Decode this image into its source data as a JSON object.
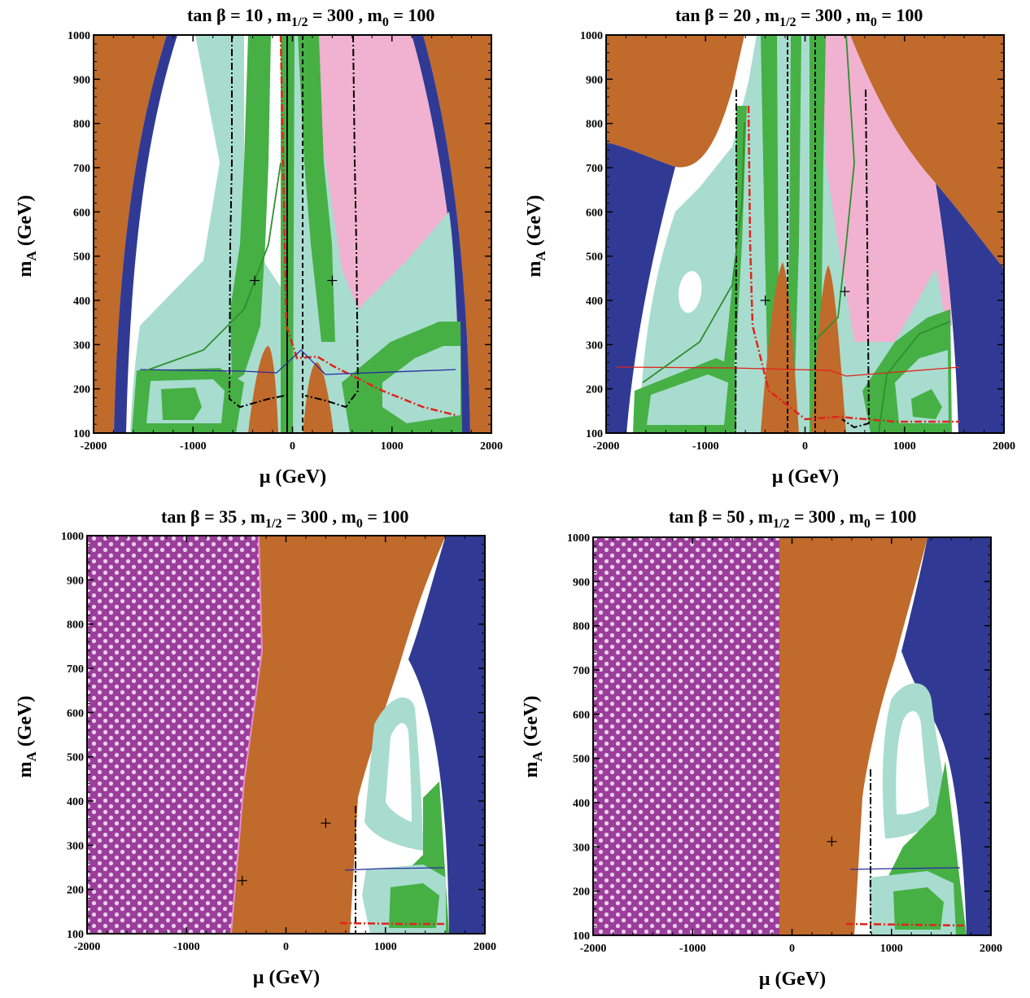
{
  "colors": {
    "brown": "#c06a2b",
    "navy": "#303a94",
    "aqua": "#a8dccf",
    "green": "#46b045",
    "pink": "#f0b2d0",
    "purple": "#9b3d9b",
    "dot": "#e9d0ea",
    "white": "#ffffff",
    "black": "#000000",
    "red": "#e0241c",
    "blue": "#2a2aa0",
    "darkgreen": "#2f8f2f"
  },
  "chart_data": [
    {
      "id": "p1",
      "type": "contour",
      "title_prefix": "tan β = 10 ,  ",
      "title_m12": "m",
      "title_m12_sub": "1/2",
      "title_m12_val": " = 300 ,  ",
      "title_m0": "m",
      "title_m0_sub": "0",
      "title_m0_val": " = 100",
      "xlabel": "μ (GeV)",
      "ylabel_main": "m",
      "ylabel_sub": "A",
      "ylabel_unit": " (GeV)",
      "xlim": [
        -2000,
        2000
      ],
      "ylim": [
        100,
        1000
      ],
      "xticks": [
        "-2000",
        "-1000",
        "0",
        "1000",
        "2000"
      ],
      "yticks": [
        "100",
        "200",
        "300",
        "400",
        "500",
        "600",
        "700",
        "800",
        "900",
        "1000"
      ],
      "markers": [
        [
          -380,
          445
        ],
        [
          400,
          445
        ]
      ]
    },
    {
      "id": "p2",
      "type": "contour",
      "title_prefix": "tan β = 20 ,  ",
      "title_m12": "m",
      "title_m12_sub": "1/2",
      "title_m12_val": " = 300 ,  ",
      "title_m0": "m",
      "title_m0_sub": "0",
      "title_m0_val": " = 100",
      "xlabel": "μ (GeV)",
      "ylabel_main": "m",
      "ylabel_sub": "A",
      "ylabel_unit": " (GeV)",
      "xlim": [
        -2000,
        2000
      ],
      "ylim": [
        100,
        1000
      ],
      "xticks": [
        "-2000",
        "-1000",
        "0",
        "1000",
        "2000"
      ],
      "yticks": [
        "100",
        "200",
        "300",
        "400",
        "500",
        "600",
        "700",
        "800",
        "900",
        "1000"
      ],
      "markers": [
        [
          -400,
          400
        ],
        [
          400,
          420
        ]
      ]
    },
    {
      "id": "p3",
      "type": "contour",
      "title_prefix": "tan β = 35 ,  ",
      "title_m12": "m",
      "title_m12_sub": "1/2",
      "title_m12_val": " = 300 ,  ",
      "title_m0": "m",
      "title_m0_sub": "0",
      "title_m0_val": " = 100",
      "xlabel": "μ (GeV)",
      "ylabel_main": "m",
      "ylabel_sub": "A",
      "ylabel_unit": " (GeV)",
      "xlim": [
        -2000,
        2000
      ],
      "ylim": [
        100,
        1000
      ],
      "xticks": [
        "-2000",
        "-1000",
        "0",
        "1000",
        "2000"
      ],
      "yticks": [
        "100",
        "200",
        "300",
        "400",
        "500",
        "600",
        "700",
        "800",
        "900",
        "1000"
      ],
      "markers": [
        [
          -440,
          220
        ],
        [
          400,
          350
        ]
      ]
    },
    {
      "id": "p4",
      "type": "contour",
      "title_prefix": "tan β = 50 ,  ",
      "title_m12": "m",
      "title_m12_sub": "1/2",
      "title_m12_val": " = 300 ,  ",
      "title_m0": "m",
      "title_m0_sub": "0",
      "title_m0_val": " = 100",
      "xlabel": "μ (GeV)",
      "ylabel_main": "m",
      "ylabel_sub": "A",
      "ylabel_unit": " (GeV)",
      "xlim": [
        -2000,
        2000
      ],
      "ylim": [
        100,
        1000
      ],
      "xticks": [
        "-2000",
        "-1000",
        "0",
        "1000",
        "2000"
      ],
      "yticks": [
        "100",
        "200",
        "300",
        "400",
        "500",
        "600",
        "700",
        "800",
        "900",
        "1000"
      ],
      "markers": [
        [
          400,
          312
        ]
      ]
    }
  ]
}
